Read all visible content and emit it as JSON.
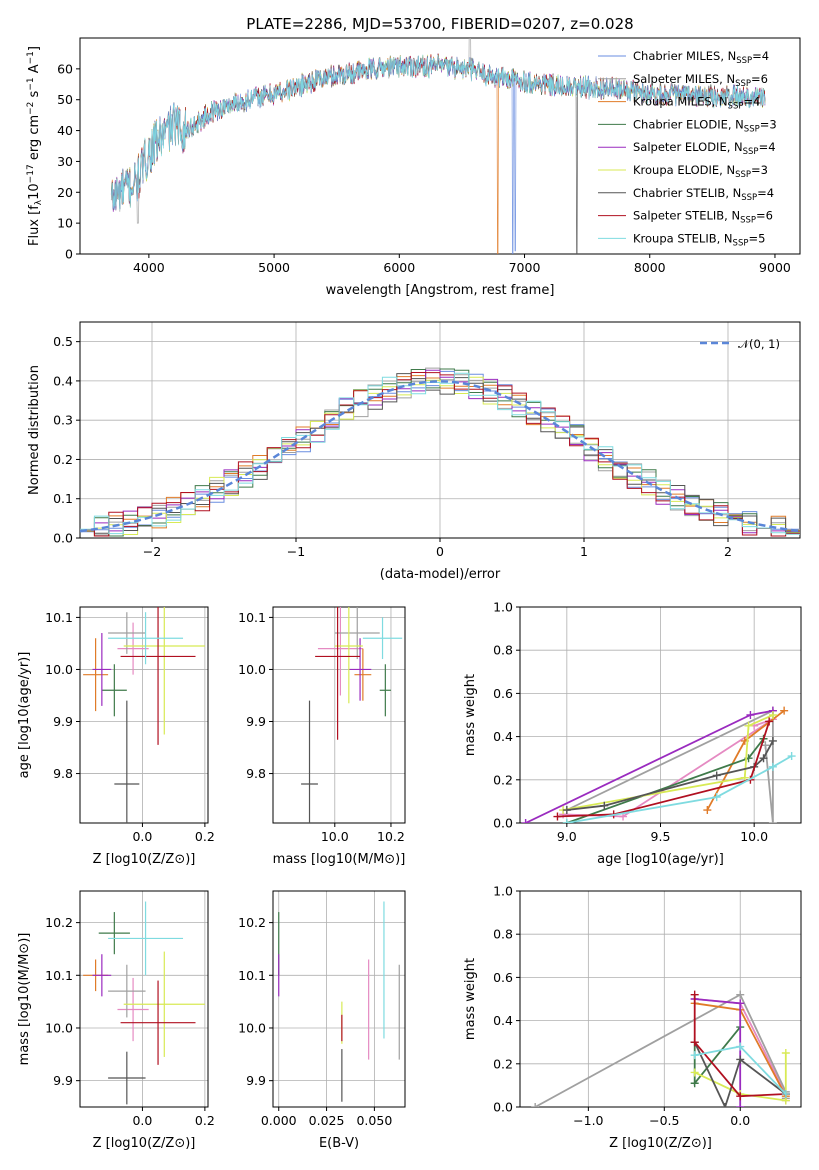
{
  "figure_title": "PLATE=2286, MJD=53700, FIBERID=0207, z=0.028",
  "models": [
    {
      "name": "Chabrier MILES, N",
      "sub": "SSP",
      "suffix": "=4",
      "color": "#6a8ee0"
    },
    {
      "name": "Salpeter MILES, N",
      "sub": "SSP",
      "suffix": "=6",
      "color": "#a0a0a0"
    },
    {
      "name": "Kroupa MILES, N",
      "sub": "SSP",
      "suffix": "=4",
      "color": "#e07b28"
    },
    {
      "name": "Chabrier ELODIE, N",
      "sub": "SSP",
      "suffix": "=3",
      "color": "#3f7a4a"
    },
    {
      "name": "Salpeter ELODIE, N",
      "sub": "SSP",
      "suffix": "=4",
      "color": "#9a2bbf"
    },
    {
      "name": "Kroupa ELODIE, N",
      "sub": "SSP",
      "suffix": "=3",
      "color": "#d8ea55"
    },
    {
      "name": "Chabrier STELIB, N",
      "sub": "SSP",
      "suffix": "=4",
      "color": "#555555"
    },
    {
      "name": "Salpeter STELIB, N",
      "sub": "SSP",
      "suffix": "=6",
      "color": "#b01020"
    },
    {
      "name": "Kroupa STELIB, N",
      "sub": "SSP",
      "suffix": "=5",
      "color": "#7fdbe0"
    }
  ],
  "extra_color": "#e58ac2",
  "chart_data": [
    {
      "id": "spectrum",
      "type": "line",
      "xlabel": "wavelength [Angstrom, rest frame]",
      "ylabel_parts": [
        "Flux [f",
        "λ",
        "10",
        "−17",
        " erg cm",
        "−2",
        " s",
        "−1",
        " A",
        "−1",
        "]"
      ],
      "xlim": [
        3450,
        9200
      ],
      "ylim": [
        0,
        70
      ],
      "xticks": [
        4000,
        5000,
        6000,
        7000,
        8000,
        9000
      ],
      "yticks": [
        0,
        10,
        20,
        30,
        40,
        50,
        60
      ],
      "x_range_plotted": [
        3700,
        8920
      ],
      "continuum_knots": [
        [
          3700,
          18
        ],
        [
          3800,
          21
        ],
        [
          3900,
          23
        ],
        [
          4000,
          33
        ],
        [
          4100,
          38
        ],
        [
          4200,
          42
        ],
        [
          4300,
          40
        ],
        [
          4500,
          46
        ],
        [
          4700,
          49
        ],
        [
          4900,
          51
        ],
        [
          5100,
          53
        ],
        [
          5300,
          56
        ],
        [
          5500,
          58
        ],
        [
          5800,
          60
        ],
        [
          6000,
          61
        ],
        [
          6300,
          61
        ],
        [
          6563,
          60
        ],
        [
          6700,
          58
        ],
        [
          7000,
          56
        ],
        [
          7300,
          54
        ],
        [
          7600,
          54
        ],
        [
          8000,
          52
        ],
        [
          8500,
          51
        ],
        [
          8920,
          51
        ]
      ],
      "dropouts": [
        [
          3912,
          2,
          10
        ],
        [
          6785,
          3,
          0
        ],
        [
          6905,
          1,
          0
        ],
        [
          6925,
          1,
          1
        ],
        [
          7418,
          7,
          0
        ]
      ],
      "emission_spike": [
        6563,
        80
      ]
    },
    {
      "id": "residuals",
      "type": "histogram",
      "xlabel": "(data-model)/error",
      "ylabel": "Normed distribution",
      "xlim": [
        -2.5,
        2.5
      ],
      "ylim": [
        0,
        0.55
      ],
      "xticks": [
        -2,
        -1,
        0,
        1,
        2
      ],
      "xtick_labels": [
        "−2",
        "−1",
        "0",
        "1",
        "2"
      ],
      "yticks": [
        0.0,
        0.1,
        0.2,
        0.3,
        0.4,
        0.5
      ],
      "ytick_labels": [
        "0.0",
        "0.1",
        "0.2",
        "0.3",
        "0.4",
        "0.5"
      ],
      "bin_width": 0.1,
      "bins_start": -2.5,
      "reference_curve": "normal(0,1)",
      "legend_label": "𝒩(0, 1)"
    },
    {
      "id": "age_vs_Z",
      "type": "errorbar",
      "xlabel": "Z [log10(Z/Z⊙)]",
      "ylabel": "age  [log10(age/yr)]",
      "xlim": [
        -0.2,
        0.21
      ],
      "ylim": [
        9.705,
        10.12
      ],
      "xticks": [
        0.0,
        0.2
      ],
      "xtick_labels": [
        "0.0",
        "0.2"
      ],
      "yticks": [
        9.8,
        9.9,
        10.0,
        10.1
      ],
      "ytick_labels": [
        "9.8",
        "9.9",
        "10.0",
        "10.1"
      ],
      "points": [
        {
          "m": 0,
          "x": -0.03,
          "y": 10.04,
          "xerr": 0.05,
          "yerr": 0.05
        },
        {
          "m": 2,
          "x": -0.05,
          "y": 10.07,
          "xerr": 0.06,
          "yerr": 0.04
        },
        {
          "m": 3,
          "x": -0.15,
          "y": 9.99,
          "xerr": 0.04,
          "yerr": 0.07
        },
        {
          "m": 4,
          "x": -0.09,
          "y": 9.96,
          "xerr": 0.04,
          "yerr": 0.05
        },
        {
          "m": 5,
          "x": -0.13,
          "y": 10.0,
          "xerr": 0.03,
          "yerr": 0.07
        },
        {
          "m": 6,
          "x": 0.07,
          "y": 10.045,
          "xerr": 0.13,
          "yerr": 0.17
        },
        {
          "m": 7,
          "x": -0.05,
          "y": 9.78,
          "xerr": 0.04,
          "yerr": 0.16
        },
        {
          "m": 8,
          "x": 0.05,
          "y": 10.025,
          "xerr": 0.12,
          "yerr": 0.17
        },
        {
          "m": 9,
          "x": 0.01,
          "y": 10.06,
          "xerr": 0.12,
          "yerr": 0.05
        }
      ]
    },
    {
      "id": "age_vs_mass",
      "type": "errorbar",
      "xlabel": "mass [log10(M/M⊙)]",
      "ylabel": "",
      "xlim": [
        9.78,
        10.25
      ],
      "ylim": [
        9.705,
        10.12
      ],
      "xticks": [
        10.0,
        10.2
      ],
      "xtick_labels": [
        "10.0",
        "10.2"
      ],
      "yticks": [
        9.8,
        9.9,
        10.0,
        10.1
      ],
      "ytick_labels": [
        "9.8",
        "9.9",
        "10.0",
        "10.1"
      ],
      "points": [
        {
          "m": 0,
          "x": 10.02,
          "y": 10.04,
          "xerr": 0.08,
          "yerr": 0.09
        },
        {
          "m": 2,
          "x": 10.08,
          "y": 10.07,
          "xerr": 0.08,
          "yerr": 0.05
        },
        {
          "m": 3,
          "x": 10.1,
          "y": 9.99,
          "xerr": 0.03,
          "yerr": 0.05
        },
        {
          "m": 4,
          "x": 10.18,
          "y": 9.96,
          "xerr": 0.02,
          "yerr": 0.05
        },
        {
          "m": 5,
          "x": 10.09,
          "y": 10.0,
          "xerr": 0.04,
          "yerr": 0.06
        },
        {
          "m": 6,
          "x": 10.05,
          "y": 10.045,
          "xerr": 0.05,
          "yerr": 0.11
        },
        {
          "m": 7,
          "x": 9.91,
          "y": 9.78,
          "xerr": 0.03,
          "yerr": 0.16
        },
        {
          "m": 8,
          "x": 10.01,
          "y": 10.025,
          "xerr": 0.08,
          "yerr": 0.16
        },
        {
          "m": 9,
          "x": 10.17,
          "y": 10.06,
          "xerr": 0.07,
          "yerr": 0.04
        }
      ]
    },
    {
      "id": "weight_vs_age",
      "type": "line",
      "xlabel": "age  [log10(age/yr)]",
      "ylabel": "mass weight",
      "xlim": [
        8.75,
        10.25
      ],
      "ylim": [
        0,
        1.0
      ],
      "xticks": [
        9.0,
        9.5,
        10.0
      ],
      "xtick_labels": [
        "9.0",
        "9.5",
        "10.0"
      ],
      "yticks": [
        0.0,
        0.2,
        0.4,
        0.6,
        0.8,
        1.0
      ],
      "ytick_labels": [
        "0.0",
        "0.2",
        "0.4",
        "0.6",
        "0.8",
        "1.0"
      ],
      "series": [
        {
          "m": 0,
          "x": [
            8.98,
            9.3,
            10.1,
            10.0
          ],
          "y": [
            0.04,
            0.03,
            0.48,
            0.45
          ]
        },
        {
          "m": 2,
          "x": [
            9.0,
            10.1,
            10.1,
            10.06
          ],
          "y": [
            0.06,
            0.52,
            0.0,
            0.36
          ]
        },
        {
          "m": 3,
          "x": [
            9.75,
            9.95,
            10.16
          ],
          "y": [
            0.06,
            0.38,
            0.52
          ]
        },
        {
          "m": 4,
          "x": [
            9.0,
            9.97,
            10.05
          ],
          "y": [
            0.0,
            0.3,
            0.39
          ]
        },
        {
          "m": 5,
          "x": [
            8.78,
            9.98,
            10.1
          ],
          "y": [
            0.0,
            0.5,
            0.52
          ]
        },
        {
          "m": 6,
          "x": [
            8.98,
            9.95,
            9.97,
            10.1
          ],
          "y": [
            0.06,
            0.21,
            0.45,
            0.5
          ]
        },
        {
          "m": 7,
          "x": [
            9.0,
            9.2,
            9.8,
            10.0,
            10.05,
            10.1
          ],
          "y": [
            0.06,
            0.08,
            0.22,
            0.26,
            0.3,
            0.38
          ]
        },
        {
          "m": 8,
          "x": [
            8.95,
            9.25,
            9.98,
            10.08
          ],
          "y": [
            0.03,
            0.04,
            0.2,
            0.47
          ]
        },
        {
          "m": 9,
          "x": [
            9.0,
            9.8,
            10.1,
            10.2
          ],
          "y": [
            0.0,
            0.12,
            0.26,
            0.31
          ]
        }
      ]
    },
    {
      "id": "mass_vs_Z",
      "type": "errorbar",
      "xlabel": "Z [log10(Z/Z⊙)]",
      "ylabel": "mass [log10(M/M⊙)]",
      "xlim": [
        -0.2,
        0.21
      ],
      "ylim": [
        9.85,
        10.26
      ],
      "xticks": [
        0.0,
        0.2
      ],
      "xtick_labels": [
        "0.0",
        "0.2"
      ],
      "yticks": [
        9.9,
        10.0,
        10.1,
        10.2
      ],
      "ytick_labels": [
        "9.9",
        "10.0",
        "10.1",
        "10.2"
      ],
      "points": [
        {
          "m": 0,
          "x": -0.03,
          "y": 10.035,
          "xerr": 0.05,
          "yerr": 0.06
        },
        {
          "m": 2,
          "x": -0.05,
          "y": 10.07,
          "xerr": 0.06,
          "yerr": 0.05
        },
        {
          "m": 3,
          "x": -0.15,
          "y": 10.1,
          "xerr": 0.04,
          "yerr": 0.03
        },
        {
          "m": 4,
          "x": -0.09,
          "y": 10.18,
          "xerr": 0.05,
          "yerr": 0.04
        },
        {
          "m": 5,
          "x": -0.13,
          "y": 10.1,
          "xerr": 0.03,
          "yerr": 0.04
        },
        {
          "m": 6,
          "x": 0.07,
          "y": 10.045,
          "xerr": 0.13,
          "yerr": 0.1
        },
        {
          "m": 7,
          "x": -0.05,
          "y": 9.905,
          "xerr": 0.06,
          "yerr": 0.05
        },
        {
          "m": 8,
          "x": 0.05,
          "y": 10.01,
          "xerr": 0.12,
          "yerr": 0.08
        },
        {
          "m": 9,
          "x": 0.01,
          "y": 10.17,
          "xerr": 0.12,
          "yerr": 0.07
        }
      ]
    },
    {
      "id": "mass_vs_ebv",
      "type": "errorbar",
      "xlabel": "E(B-V)",
      "ylabel": "",
      "xlim": [
        -0.003,
        0.066
      ],
      "ylim": [
        9.85,
        10.26
      ],
      "xticks": [
        0.0,
        0.025,
        0.05
      ],
      "xtick_labels": [
        "0.000",
        "0.025",
        "0.050"
      ],
      "yticks": [
        9.9,
        10.0,
        10.1,
        10.2
      ],
      "ytick_labels": [
        "9.9",
        "10.0",
        "10.1",
        "10.2"
      ],
      "points": [
        {
          "m": 0,
          "x": 0.047,
          "y": 10.035,
          "xerr": 0.0,
          "yerr": 0.095
        },
        {
          "m": 2,
          "x": 0.063,
          "y": 10.03,
          "xerr": 0.0,
          "yerr": 0.09
        },
        {
          "m": 4,
          "x": 0.0,
          "y": 10.16,
          "xerr": 0.0,
          "yerr": 0.06
        },
        {
          "m": 5,
          "x": 0.0,
          "y": 10.1,
          "xerr": 0.0,
          "yerr": 0.04
        },
        {
          "m": 6,
          "x": 0.033,
          "y": 10.01,
          "xerr": 0.0,
          "yerr": 0.04
        },
        {
          "m": 7,
          "x": 0.033,
          "y": 9.91,
          "xerr": 0.0,
          "yerr": 0.05
        },
        {
          "m": 8,
          "x": 0.033,
          "y": 10.0,
          "xerr": 0.0,
          "yerr": 0.025
        },
        {
          "m": 9,
          "x": 0.055,
          "y": 10.11,
          "xerr": 0.0,
          "yerr": 0.13
        }
      ]
    },
    {
      "id": "weight_vs_Z",
      "type": "line",
      "xlabel": "Z [log10(Z/Z⊙)]",
      "ylabel": "mass weight",
      "xlim": [
        -1.45,
        0.4
      ],
      "ylim": [
        0,
        1.0
      ],
      "xticks": [
        -1.0,
        -0.5,
        0.0
      ],
      "xtick_labels": [
        "−1.0",
        "−0.5",
        "0.0"
      ],
      "yticks": [
        0.0,
        0.2,
        0.4,
        0.6,
        0.8,
        1.0
      ],
      "ytick_labels": [
        "0.0",
        "0.2",
        "0.4",
        "0.6",
        "0.8",
        "1.0"
      ],
      "series": [
        {
          "m": 0,
          "x": [
            -0.3,
            0.0,
            0.3,
            0.3
          ],
          "y": [
            0.5,
            0.48,
            0.06,
            0.03
          ]
        },
        {
          "m": 2,
          "x": [
            -1.35,
            0.0,
            0.3,
            0.3
          ],
          "y": [
            0.0,
            0.52,
            0.07,
            0.04
          ]
        },
        {
          "m": 3,
          "x": [
            -0.3,
            0.0,
            0.3
          ],
          "y": [
            0.48,
            0.45,
            0.05
          ]
        },
        {
          "m": 4,
          "x": [
            -0.3,
            -0.3,
            0.0
          ],
          "y": [
            0.3,
            0.11,
            0.37
          ]
        },
        {
          "m": 5,
          "x": [
            -0.3,
            0.0,
            0.0
          ],
          "y": [
            0.5,
            0.48,
            0.0
          ]
        },
        {
          "m": 6,
          "x": [
            -0.3,
            0.0,
            0.3,
            0.3
          ],
          "y": [
            0.16,
            0.06,
            0.03,
            0.25
          ]
        },
        {
          "m": 7,
          "x": [
            -0.3,
            -0.1,
            0.0,
            0.3
          ],
          "y": [
            0.3,
            0.0,
            0.22,
            0.06
          ]
        },
        {
          "m": 8,
          "x": [
            -0.3,
            -0.3,
            0.0,
            0.3
          ],
          "y": [
            0.52,
            0.3,
            0.05,
            0.06
          ]
        },
        {
          "m": 9,
          "x": [
            -0.3,
            0.0,
            0.3
          ],
          "y": [
            0.24,
            0.28,
            0.06
          ]
        }
      ]
    }
  ]
}
